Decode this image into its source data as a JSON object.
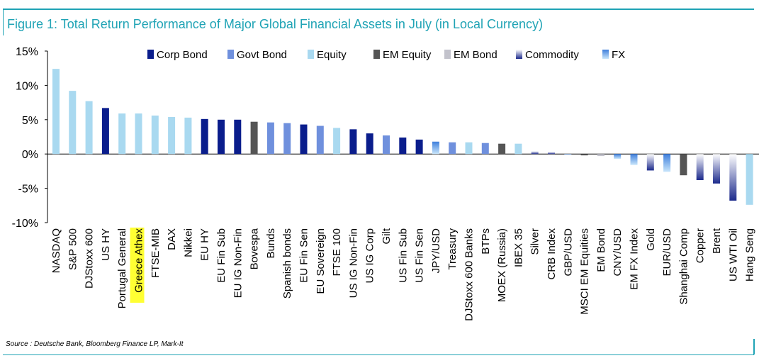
{
  "title": "Figure 1: Total Return Performance of Major Global Financial Assets in July (in Local Currency)",
  "source": "Source : Deutsche Bank, Bloomberg Finance LP, Mark-It",
  "highlight_color": "#ffff33",
  "chart_data": {
    "type": "bar",
    "ylim": [
      -10,
      15
    ],
    "yticks": [
      -10,
      -5,
      0,
      5,
      10,
      15
    ],
    "ytick_labels": [
      "-10%",
      "-5%",
      "0%",
      "5%",
      "10%",
      "15%"
    ],
    "grid": false,
    "legend_position": "top",
    "legend": [
      {
        "name": "Corp Bond",
        "color": "#0a1d8c"
      },
      {
        "name": "Govt Bond",
        "color": "#6f90dd"
      },
      {
        "name": "Equity",
        "color": "#a9d9f0"
      },
      {
        "name": "EM Equity",
        "color": "#555555"
      },
      {
        "name": "EM Bond",
        "color": "#c3c3cc"
      },
      {
        "name": "Commodity",
        "color": "#1c2a8c"
      },
      {
        "name": "FX",
        "color": "#7ab2ee"
      }
    ],
    "categories": [
      "NASDAQ",
      "S&P 500",
      "DJStoxx 600",
      "US HY",
      "Portugal General",
      "Greece Athex",
      "FTSE-MIB",
      "DAX",
      "Nikkei",
      "EU HY",
      "EU Fin Sub",
      "EU IG Non-Fin",
      "Bovespa",
      "Bunds",
      "Spanish bonds",
      "EU Fin Sen",
      "EU Sovereign",
      "FTSE 100",
      "US IG Non-Fin",
      "US IG Corp",
      "Gilt",
      "US Fin Sub",
      "US Fin Sen",
      "JPY/USD",
      "Treasury",
      "DJStoxx 600 Banks",
      "BTPs",
      "MOEX (Russia)",
      "IBEX 35",
      "Silver",
      "CRB Index",
      "GBP/USD",
      "MSCI EM Equities",
      "EM Bond",
      "CNY/USD",
      "EM FX Index",
      "Gold",
      "EUR/USD",
      "Shanghai Comp",
      "Copper",
      "Brent",
      "US WTI Oil",
      "Hang Seng"
    ],
    "values": [
      12.4,
      9.2,
      7.7,
      6.7,
      5.9,
      5.9,
      5.6,
      5.4,
      5.3,
      5.1,
      5.0,
      5.0,
      4.7,
      4.6,
      4.5,
      4.3,
      4.1,
      3.8,
      3.6,
      3.0,
      2.7,
      2.4,
      2.1,
      1.8,
      1.7,
      1.7,
      1.6,
      1.5,
      1.5,
      0.4,
      0.3,
      0.0,
      -0.2,
      -0.3,
      -0.7,
      -1.6,
      -2.4,
      -2.6,
      -3.1,
      -3.8,
      -4.3,
      -6.8,
      -7.4
    ],
    "asset_class": [
      "Equity",
      "Equity",
      "Equity",
      "Corp Bond",
      "Equity",
      "Equity",
      "Equity",
      "Equity",
      "Equity",
      "Corp Bond",
      "Corp Bond",
      "Corp Bond",
      "EM Equity",
      "Govt Bond",
      "Govt Bond",
      "Corp Bond",
      "Govt Bond",
      "Equity",
      "Corp Bond",
      "Corp Bond",
      "Govt Bond",
      "Corp Bond",
      "Corp Bond",
      "FX",
      "Govt Bond",
      "Equity",
      "Govt Bond",
      "EM Equity",
      "Equity",
      "Commodity",
      "Commodity",
      "FX",
      "EM Equity",
      "EM Bond",
      "FX",
      "FX",
      "Commodity",
      "FX",
      "EM Equity",
      "Commodity",
      "Commodity",
      "Commodity",
      "Equity"
    ],
    "highlighted_category": "Greece Athex"
  }
}
